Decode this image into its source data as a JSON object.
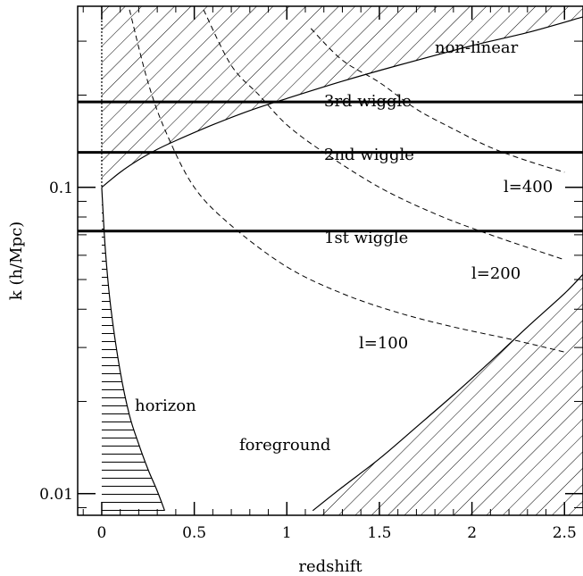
{
  "chart_data": {
    "type": "line",
    "xlabel": "redshift",
    "ylabel": "k (h/Mpc)",
    "xlim": [
      -0.13,
      2.6
    ],
    "ylim": [
      0.0085,
      0.39
    ],
    "yscale": "log",
    "x_ticks": [
      {
        "value": 0,
        "label": "0"
      },
      {
        "value": 0.5,
        "label": "0.5"
      },
      {
        "value": 1,
        "label": "1"
      },
      {
        "value": 1.5,
        "label": "1.5"
      },
      {
        "value": 2,
        "label": "2"
      },
      {
        "value": 2.5,
        "label": "2.5"
      }
    ],
    "y_ticks": [
      {
        "value": 0.01,
        "label": "0.01"
      },
      {
        "value": 0.1,
        "label": "0.1"
      }
    ],
    "wiggles": [
      {
        "label": "1st wiggle",
        "k": 0.072
      },
      {
        "label": "2nd wiggle",
        "k": 0.13
      },
      {
        "label": "3rd wiggle",
        "k": 0.19
      }
    ],
    "ell_curves": [
      {
        "label": "l=100",
        "x": [
          0.15,
          0.25,
          0.35,
          0.5,
          0.7,
          1.0,
          1.3,
          1.6,
          1.9,
          2.2,
          2.5
        ],
        "k": [
          0.38,
          0.22,
          0.15,
          0.1,
          0.075,
          0.055,
          0.045,
          0.039,
          0.035,
          0.032,
          0.029
        ]
      },
      {
        "label": "l=200",
        "x": [
          0.55,
          0.7,
          0.85,
          1.0,
          1.2,
          1.5,
          1.8,
          2.1,
          2.5
        ],
        "k": [
          0.38,
          0.25,
          0.2,
          0.16,
          0.13,
          0.1,
          0.082,
          0.07,
          0.058
        ]
      },
      {
        "label": "l=400",
        "x": [
          1.13,
          1.3,
          1.5,
          1.7,
          1.9,
          2.1,
          2.3,
          2.5
        ],
        "k": [
          0.33,
          0.26,
          0.22,
          0.18,
          0.155,
          0.135,
          0.122,
          0.112
        ]
      }
    ],
    "nonlinear_boundary": {
      "x": [
        0,
        0.1,
        0.2,
        0.3,
        0.4,
        0.6,
        0.8,
        1.0,
        1.3,
        1.6,
        2.0,
        2.3,
        2.6
      ],
      "k": [
        0.1,
        0.112,
        0.123,
        0.133,
        0.142,
        0.16,
        0.178,
        0.195,
        0.222,
        0.25,
        0.29,
        0.32,
        0.36
      ]
    },
    "horizon_boundary": {
      "x": [
        0,
        0.02,
        0.05,
        0.1,
        0.15,
        0.2,
        0.25,
        0.3,
        0.34
      ],
      "k": [
        0.1,
        0.062,
        0.04,
        0.025,
        0.018,
        0.0145,
        0.012,
        0.0102,
        0.0088
      ]
    },
    "foreground_boundary": {
      "x": [
        1.14,
        1.3,
        1.5,
        1.7,
        1.9,
        2.1,
        2.3,
        2.5,
        2.6
      ],
      "k": [
        0.0088,
        0.0105,
        0.013,
        0.0165,
        0.021,
        0.027,
        0.035,
        0.045,
        0.052
      ]
    },
    "region_labels": {
      "nonlinear": "non-linear",
      "horizon": "horizon",
      "foreground": "foreground"
    },
    "grid": false,
    "legend": "none"
  }
}
